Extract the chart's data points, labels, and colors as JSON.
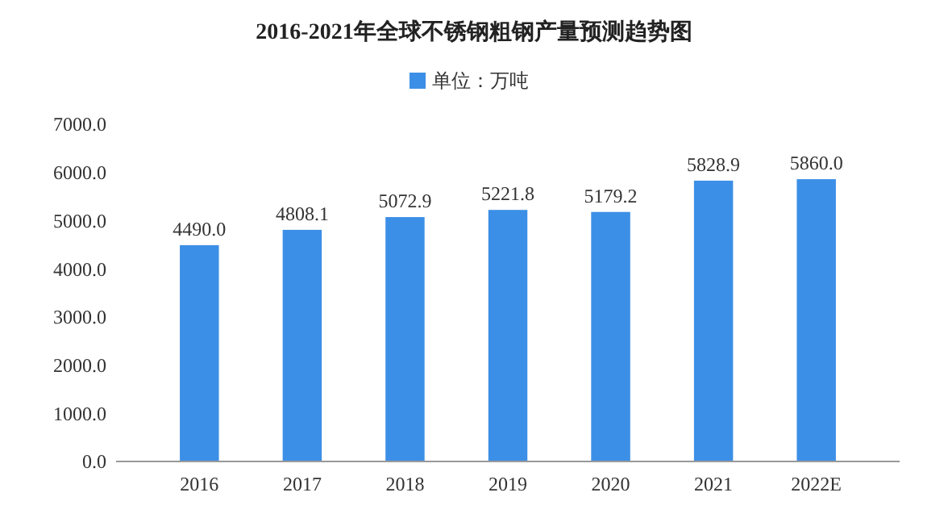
{
  "chart_data": {
    "type": "bar",
    "title": "2016-2021年全球不锈钢粗钢产量预测趋势图",
    "categories": [
      "2016",
      "2017",
      "2018",
      "2019",
      "2020",
      "2021",
      "2022E"
    ],
    "series": [
      {
        "name": "单位：万吨",
        "color": "#3c8fe6",
        "values": [
          4490.0,
          4808.1,
          5072.9,
          5221.8,
          5179.2,
          5828.9,
          5860.0
        ]
      }
    ],
    "ylim": [
      0,
      7000
    ],
    "yticks": [
      {
        "value": 0,
        "label": "0.0"
      },
      {
        "value": 1000,
        "label": "1000.0"
      },
      {
        "value": 2000,
        "label": "2000.0"
      },
      {
        "value": 3000,
        "label": "3000.0"
      },
      {
        "value": 4000,
        "label": "4000.0"
      },
      {
        "value": 5000,
        "label": "5000.0"
      },
      {
        "value": 6000,
        "label": "6000.0"
      },
      {
        "value": 7000,
        "label": "7000.0"
      }
    ],
    "value_labels": [
      "4490.0",
      "4808.1",
      "5072.9",
      "5221.8",
      "5179.2",
      "5828.9",
      "5860.0"
    ],
    "legend": "top",
    "grid": false
  }
}
